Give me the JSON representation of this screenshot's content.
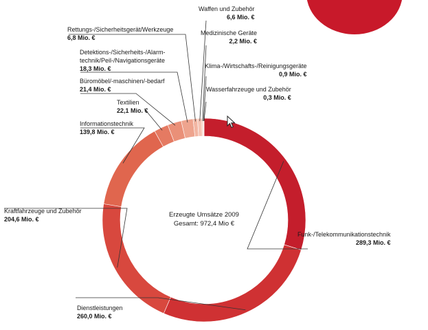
{
  "center": {
    "line1": "Erzeugte Umsätze 2009",
    "line2": "Gesamt: 972,4 Mio €"
  },
  "colors": {
    "accent": "#c8192a",
    "deco": "#c8192a"
  },
  "chart_data": {
    "type": "donut",
    "title": "Erzeugte Umsätze 2009",
    "total": "Gesamt: 972,4 Mio €",
    "unit": "Mio. €",
    "slices": [
      {
        "name": "Funk-/Telekommunikationstechnik",
        "value": 289.3,
        "label": "289,3 Mio. €",
        "color": "#c41e2c"
      },
      {
        "name": "Dienstleistungen",
        "value": 260.0,
        "label": "260,0 Mio. €",
        "color": "#cf3133"
      },
      {
        "name": "Kraftfahrzeuge und Zubehör",
        "value": 204.6,
        "label": "204,6 Mio. €",
        "color": "#d8483e"
      },
      {
        "name": "Informationstechnik",
        "value": 139.8,
        "label": "139,8 Mio. €",
        "color": "#e0664e"
      },
      {
        "name": "Textilien",
        "value": 22.1,
        "label": "22,1 Mio. €",
        "color": "#e57a62"
      },
      {
        "name": "Büromöbel/-maschinen/-bedarf",
        "value": 21.4,
        "label": "21,4 Mio. €",
        "color": "#ea9078"
      },
      {
        "name": "Detektions-/Sicherheits-/Alarmtechnik/Peil-/Navigationsgeräte",
        "label_lines": [
          "Detektions-/Sicherheits-/Alarm-",
          "technik/Peil-/Navigationsgeräte"
        ],
        "value": 18.3,
        "label": "18,3 Mio. €",
        "color": "#eea48e"
      },
      {
        "name": "Rettungs-/Sicherheitsgerät/Werkzeuge",
        "value": 6.8,
        "label": "6,8 Mio. €",
        "color": "#f2b6a3"
      },
      {
        "name": "Waffen und Zubehör",
        "value": 6.6,
        "label": "6,6 Mio. €",
        "color": "#f5c4b4"
      },
      {
        "name": "Medizinische Geräte",
        "value": 2.2,
        "label": "2,2 Mio. €",
        "color": "#f7d0c2"
      },
      {
        "name": "Klima-/Wirtschafts-/Reinigungsgeräte",
        "value": 0.9,
        "label": "0,9 Mio. €",
        "color": "#f9dbd0"
      },
      {
        "name": "Wasserfahrzeuge und Zubehör",
        "value": 0.3,
        "label": "0,3 Mio. €",
        "color": "#fbe5dc"
      }
    ]
  }
}
